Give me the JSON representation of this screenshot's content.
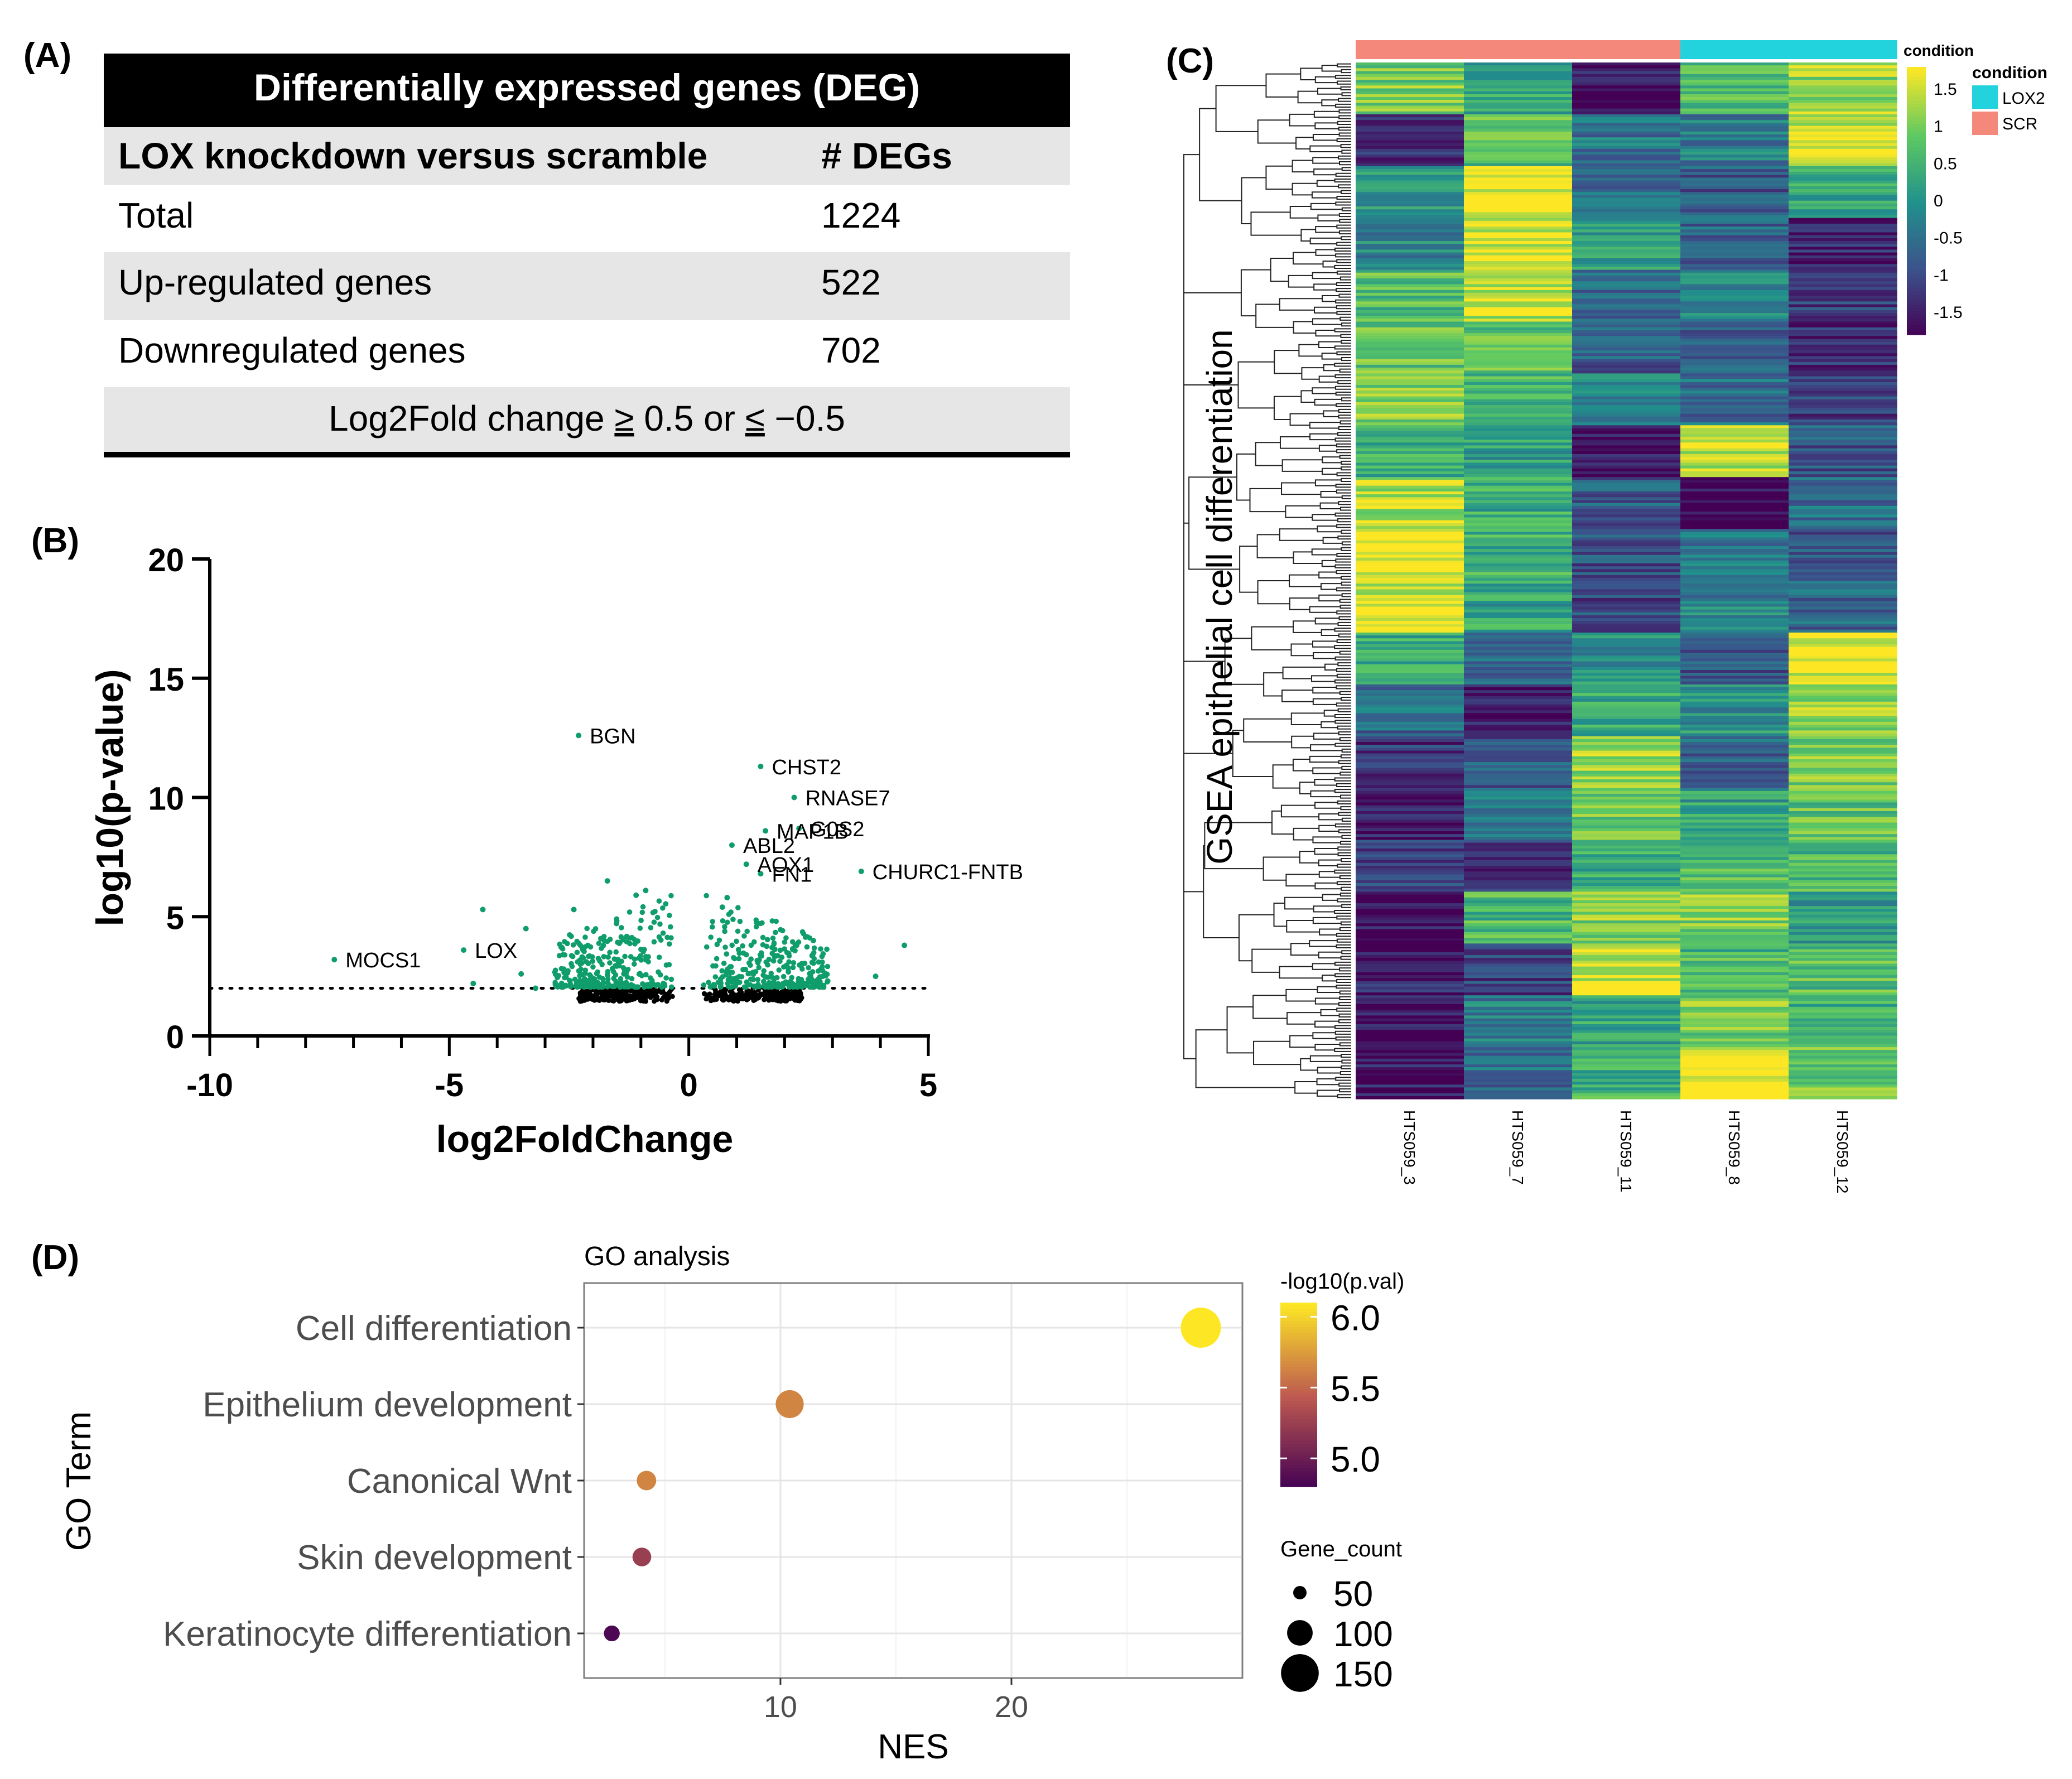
{
  "panels": {
    "a": "(A)",
    "b": "(B)",
    "c": "(C)",
    "d": "(D)"
  },
  "colors": {
    "green": "#0f9d6b",
    "black": "#000000",
    "scr": "#f4897b",
    "lox2": "#22d2dd"
  },
  "deg_table": {
    "title": "Differentially expressed genes (DEG)",
    "header": [
      "LOX knockdown versus scramble",
      "# DEGs"
    ],
    "rows": [
      {
        "label": "Total",
        "value": "1224"
      },
      {
        "label": "Up-regulated genes",
        "value": "522"
      },
      {
        "label": "Downregulated genes",
        "value": "702"
      }
    ],
    "footer": {
      "prefix": "Log2Fold change ",
      "ge": "≥",
      "mid": " 0.5 or ",
      "le": "≤",
      "suffix": " −0.5"
    }
  },
  "chart_data": [
    {
      "id": "volcano",
      "type": "scatter",
      "title": "",
      "xlabel": "log2FoldChange",
      "ylabel": "log10(p-value)",
      "xlim": [
        -10,
        5
      ],
      "ylim": [
        0,
        20
      ],
      "xticks": [
        -10,
        -5,
        0,
        5
      ],
      "yticks": [
        0,
        5,
        10,
        15,
        20
      ],
      "threshold_y": 2,
      "labeled_points": [
        {
          "gene": "BGN",
          "x": -2.3,
          "y": 12.6
        },
        {
          "gene": "CHST2",
          "x": 1.5,
          "y": 11.3
        },
        {
          "gene": "RNASE7",
          "x": 2.2,
          "y": 10.0
        },
        {
          "gene": "MAP1B",
          "x": 1.6,
          "y": 8.6
        },
        {
          "gene": "G0S2",
          "x": 2.3,
          "y": 8.7
        },
        {
          "gene": "ABL2",
          "x": 0.9,
          "y": 8.0
        },
        {
          "gene": "AOX1",
          "x": 1.2,
          "y": 7.2
        },
        {
          "gene": "FN1",
          "x": 1.5,
          "y": 6.8
        },
        {
          "gene": "CHURC1-FNTB",
          "x": 3.6,
          "y": 6.9
        },
        {
          "gene": "MOCS1",
          "x": -7.4,
          "y": 3.2
        },
        {
          "gene": "LOX",
          "x": -4.7,
          "y": 3.6
        }
      ],
      "other_significant_points": [
        [
          -4.3,
          5.3
        ],
        [
          -3.4,
          4.5
        ],
        [
          -2.4,
          5.3
        ],
        [
          -1.7,
          6.5
        ],
        [
          -1.1,
          5.9
        ],
        [
          -0.9,
          6.1
        ],
        [
          0.8,
          5.8
        ],
        [
          0.7,
          5.4
        ],
        [
          2.6,
          4.0
        ],
        [
          4.5,
          3.8
        ],
        [
          3.9,
          2.5
        ],
        [
          -3.5,
          2.6
        ],
        [
          -4.5,
          2.2
        ],
        [
          -3.2,
          2.0
        ],
        [
          2.9,
          2.3
        ]
      ],
      "cluster_density": {
        "left_range": [
          -2.8,
          -0.3
        ],
        "right_range": [
          0.3,
          2.9
        ],
        "n_significant_per_side": 300,
        "n_nonsignificant_per_side": 220
      }
    },
    {
      "id": "heatmap",
      "type": "heatmap",
      "ylabel": "GSEA epithelial cell differentiation",
      "samples": [
        "HTS059_3",
        "HTS059_7",
        "HTS059_11",
        "HTS059_8",
        "HTS059_12"
      ],
      "conditions": [
        "SCR",
        "SCR",
        "SCR",
        "LOX2",
        "LOX2"
      ],
      "legend_title": "condition",
      "legend_entries": [
        "LOX2",
        "SCR"
      ],
      "colorbar_title": "condition",
      "colorbar_ticks": [
        "1.5",
        "1",
        "0.5",
        "0",
        "-0.5",
        "-1",
        "-1.5"
      ],
      "colorbar_range": [
        -1.8,
        1.8
      ],
      "row_blocks": [
        [
          1.0,
          0.3,
          -1.6,
          0.6,
          1.2
        ],
        [
          -1.4,
          0.7,
          -0.4,
          -0.3,
          1.6
        ],
        [
          0.1,
          1.8,
          -0.6,
          -0.8,
          0.3
        ],
        [
          -0.2,
          1.6,
          0.2,
          -0.6,
          -1.5
        ],
        [
          0.7,
          1.4,
          -0.5,
          -0.3,
          -1.1
        ],
        [
          0.9,
          0.8,
          -0.8,
          -0.7,
          -1.3
        ],
        [
          1.1,
          0.6,
          -0.3,
          -0.5,
          -1.2
        ],
        [
          0.4,
          0.2,
          -1.7,
          1.5,
          -0.8
        ],
        [
          1.4,
          0.4,
          -0.8,
          -1.8,
          -0.5
        ],
        [
          1.8,
          0.5,
          -0.9,
          -0.4,
          -0.9
        ],
        [
          1.6,
          0.3,
          -1.0,
          -0.2,
          -0.6
        ],
        [
          0.3,
          -0.5,
          0.0,
          -0.8,
          1.7
        ],
        [
          -0.5,
          -1.6,
          0.4,
          0.0,
          1.2
        ],
        [
          -1.2,
          -0.8,
          1.2,
          -0.6,
          1.0
        ],
        [
          -1.6,
          -0.3,
          0.9,
          0.2,
          0.8
        ],
        [
          -1.0,
          -1.3,
          0.4,
          0.7,
          0.6
        ],
        [
          -1.7,
          0.6,
          1.1,
          1.1,
          0.2
        ],
        [
          -1.5,
          -1.1,
          1.6,
          0.6,
          0.7
        ],
        [
          -1.7,
          -0.3,
          0.3,
          1.0,
          0.5
        ],
        [
          -1.6,
          -0.5,
          0.5,
          1.8,
          0.9
        ]
      ]
    },
    {
      "id": "go_dotplot",
      "type": "scatter",
      "title": "GO analysis",
      "xlabel": "NES",
      "ylabel": "GO Term",
      "xlim": [
        1.5,
        30
      ],
      "xticks": [
        10,
        20
      ],
      "categories": [
        "Cell differentiation",
        "Epithelium development",
        "Canonical Wnt",
        "Skin development",
        "Keratinocyte differentiation"
      ],
      "nes": [
        28.2,
        10.4,
        4.2,
        4.0,
        2.7
      ],
      "neg_log10_pval": [
        6.1,
        5.65,
        5.65,
        5.25,
        4.85
      ],
      "gene_count": [
        160,
        110,
        75,
        72,
        60
      ],
      "color_legend_title": "-log10(p.val)",
      "color_ticks": [
        "6.0",
        "5.5",
        "5.0"
      ],
      "color_range": [
        4.8,
        6.1
      ],
      "size_legend_title": "Gene_count",
      "size_ticks": [
        "50",
        "100",
        "150"
      ]
    }
  ]
}
